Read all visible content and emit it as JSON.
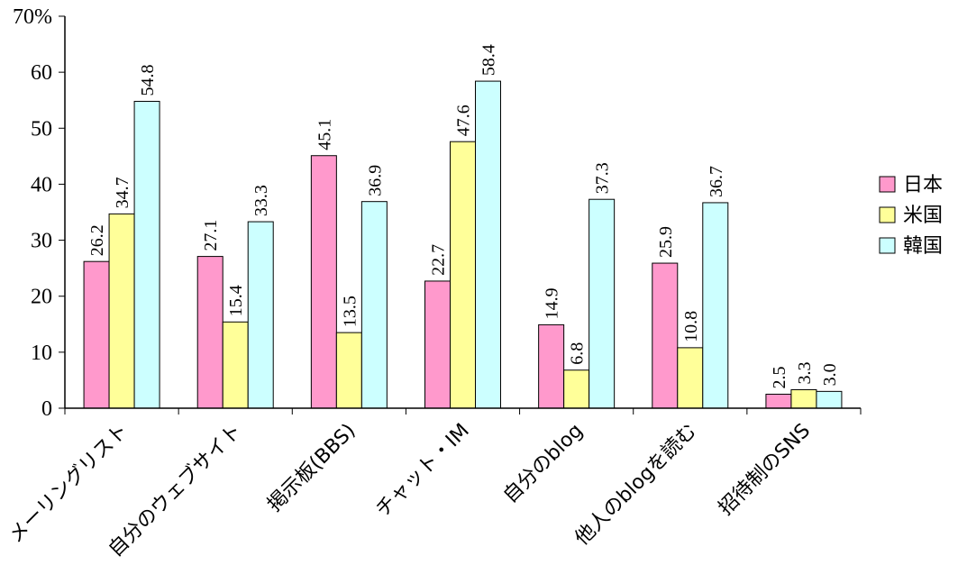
{
  "chart_data": {
    "type": "bar",
    "categories": [
      "メーリングリスト",
      "自分のウェブサイト",
      "掲示板(BBS)",
      "チャット・IM",
      "自分のblog",
      "他人のblogを読む",
      "招待制のSNS"
    ],
    "series": [
      {
        "name": "日本",
        "color": "#ff99cc",
        "values": [
          26.2,
          27.1,
          45.1,
          22.7,
          14.9,
          25.9,
          2.5
        ],
        "labels": [
          "26.2",
          "27.1",
          "45.1",
          "22.7",
          "14.9",
          "25.9",
          "2.5"
        ]
      },
      {
        "name": "米国",
        "color": "#ffff99",
        "values": [
          34.7,
          15.4,
          13.5,
          47.6,
          6.8,
          10.8,
          3.3
        ],
        "labels": [
          "34.7",
          "15.4",
          "13.5",
          "47.6",
          "6.8",
          "10.8",
          "3.3"
        ]
      },
      {
        "name": "韓国",
        "color": "#ccffff",
        "values": [
          54.8,
          33.3,
          36.9,
          58.4,
          37.3,
          36.7,
          3.0
        ],
        "labels": [
          "54.8",
          "33.3",
          "36.9",
          "58.4",
          "37.3",
          "36.7",
          "3.0"
        ]
      }
    ],
    "ylim": [
      0,
      70
    ],
    "yticks": [
      0,
      10,
      20,
      30,
      40,
      50,
      60,
      70
    ],
    "ytick_labels": [
      "0",
      "10",
      "20",
      "30",
      "40",
      "50",
      "60",
      "70%"
    ],
    "legend_position": "right",
    "grid": false
  }
}
